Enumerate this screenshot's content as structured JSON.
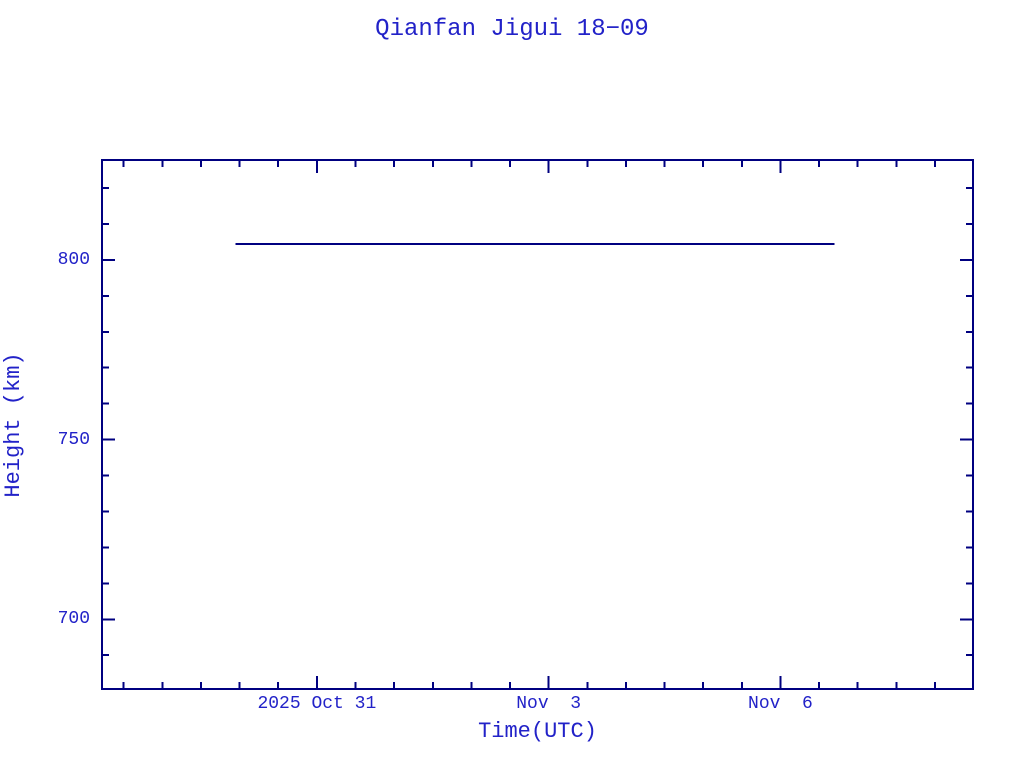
{
  "colors": {
    "text": "#2222c8",
    "axis": "#000080",
    "background": "#ffffff"
  },
  "chart_data": {
    "type": "line",
    "title": "Qianfan Jigui 18−09",
    "xlabel": "Time(UTC)",
    "ylabel": "Height (km)",
    "x_axis": {
      "unit": "days, 0 = 2025 Oct 31 00:00 UTC",
      "lim": [
        -2.781,
        8.492
      ],
      "major_ticks": [
        {
          "value": 0,
          "label": "2025 Oct 31"
        },
        {
          "value": 3,
          "label": "Nov  3"
        },
        {
          "value": 6,
          "label": "Nov  6"
        }
      ],
      "minor_tick_interval": 0.5
    },
    "y_axis": {
      "lim": [
        680.6,
        827.8
      ],
      "major_ticks": [
        {
          "value": 700,
          "label": "700"
        },
        {
          "value": 750,
          "label": "750"
        },
        {
          "value": 800,
          "label": "800"
        }
      ],
      "minor_tick_interval": 10
    },
    "series": [
      {
        "name": "height",
        "color": "#000080",
        "x": [
          -1.05,
          6.7
        ],
        "y": [
          804.4,
          804.4
        ]
      }
    ],
    "grid": false,
    "legend": false
  }
}
